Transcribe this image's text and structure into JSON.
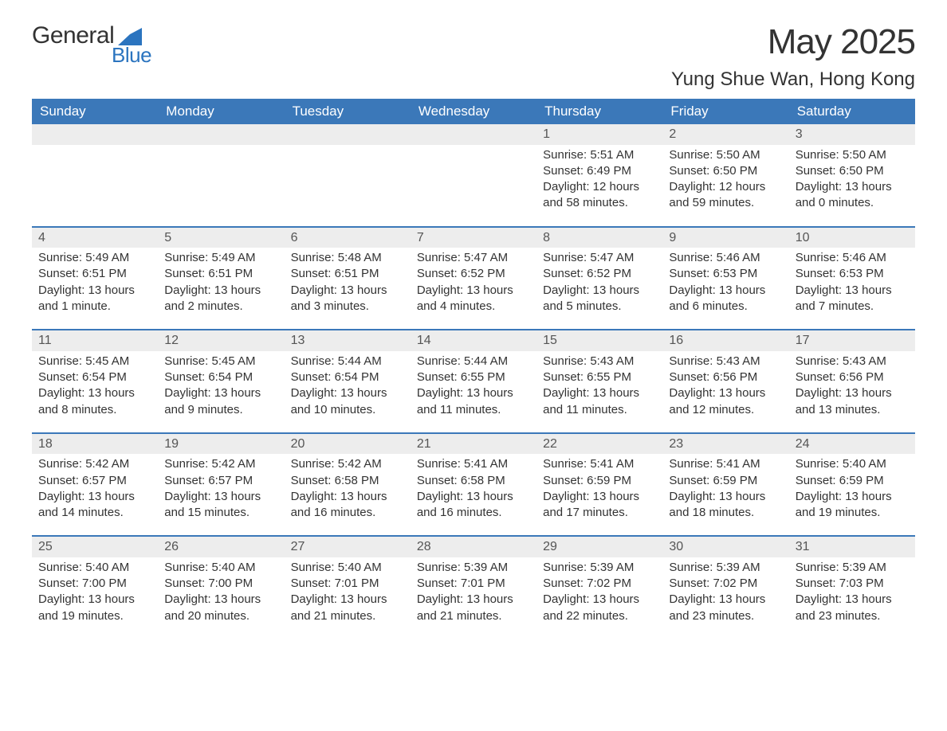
{
  "logo": {
    "main": "General",
    "sub": "Blue",
    "shape_color": "#2b74bf"
  },
  "title": "May 2025",
  "location": "Yung Shue Wan, Hong Kong",
  "colors": {
    "header_bg": "#3b78b9",
    "header_text": "#ffffff",
    "daynum_bg": "#ededed",
    "row_divider": "#3b78b9",
    "body_text": "#333333"
  },
  "typography": {
    "title_fontsize_pt": 33,
    "location_fontsize_pt": 18,
    "header_fontsize_pt": 13,
    "cell_fontsize_pt": 11
  },
  "layout": {
    "columns": 7,
    "rows": 5,
    "col_width_pct": 14.28
  },
  "weekdays": [
    "Sunday",
    "Monday",
    "Tuesday",
    "Wednesday",
    "Thursday",
    "Friday",
    "Saturday"
  ],
  "weeks": [
    [
      null,
      null,
      null,
      null,
      {
        "n": "1",
        "sr": "Sunrise: 5:51 AM",
        "ss": "Sunset: 6:49 PM",
        "dl": "Daylight: 12 hours and 58 minutes."
      },
      {
        "n": "2",
        "sr": "Sunrise: 5:50 AM",
        "ss": "Sunset: 6:50 PM",
        "dl": "Daylight: 12 hours and 59 minutes."
      },
      {
        "n": "3",
        "sr": "Sunrise: 5:50 AM",
        "ss": "Sunset: 6:50 PM",
        "dl": "Daylight: 13 hours and 0 minutes."
      }
    ],
    [
      {
        "n": "4",
        "sr": "Sunrise: 5:49 AM",
        "ss": "Sunset: 6:51 PM",
        "dl": "Daylight: 13 hours and 1 minute."
      },
      {
        "n": "5",
        "sr": "Sunrise: 5:49 AM",
        "ss": "Sunset: 6:51 PM",
        "dl": "Daylight: 13 hours and 2 minutes."
      },
      {
        "n": "6",
        "sr": "Sunrise: 5:48 AM",
        "ss": "Sunset: 6:51 PM",
        "dl": "Daylight: 13 hours and 3 minutes."
      },
      {
        "n": "7",
        "sr": "Sunrise: 5:47 AM",
        "ss": "Sunset: 6:52 PM",
        "dl": "Daylight: 13 hours and 4 minutes."
      },
      {
        "n": "8",
        "sr": "Sunrise: 5:47 AM",
        "ss": "Sunset: 6:52 PM",
        "dl": "Daylight: 13 hours and 5 minutes."
      },
      {
        "n": "9",
        "sr": "Sunrise: 5:46 AM",
        "ss": "Sunset: 6:53 PM",
        "dl": "Daylight: 13 hours and 6 minutes."
      },
      {
        "n": "10",
        "sr": "Sunrise: 5:46 AM",
        "ss": "Sunset: 6:53 PM",
        "dl": "Daylight: 13 hours and 7 minutes."
      }
    ],
    [
      {
        "n": "11",
        "sr": "Sunrise: 5:45 AM",
        "ss": "Sunset: 6:54 PM",
        "dl": "Daylight: 13 hours and 8 minutes."
      },
      {
        "n": "12",
        "sr": "Sunrise: 5:45 AM",
        "ss": "Sunset: 6:54 PM",
        "dl": "Daylight: 13 hours and 9 minutes."
      },
      {
        "n": "13",
        "sr": "Sunrise: 5:44 AM",
        "ss": "Sunset: 6:54 PM",
        "dl": "Daylight: 13 hours and 10 minutes."
      },
      {
        "n": "14",
        "sr": "Sunrise: 5:44 AM",
        "ss": "Sunset: 6:55 PM",
        "dl": "Daylight: 13 hours and 11 minutes."
      },
      {
        "n": "15",
        "sr": "Sunrise: 5:43 AM",
        "ss": "Sunset: 6:55 PM",
        "dl": "Daylight: 13 hours and 11 minutes."
      },
      {
        "n": "16",
        "sr": "Sunrise: 5:43 AM",
        "ss": "Sunset: 6:56 PM",
        "dl": "Daylight: 13 hours and 12 minutes."
      },
      {
        "n": "17",
        "sr": "Sunrise: 5:43 AM",
        "ss": "Sunset: 6:56 PM",
        "dl": "Daylight: 13 hours and 13 minutes."
      }
    ],
    [
      {
        "n": "18",
        "sr": "Sunrise: 5:42 AM",
        "ss": "Sunset: 6:57 PM",
        "dl": "Daylight: 13 hours and 14 minutes."
      },
      {
        "n": "19",
        "sr": "Sunrise: 5:42 AM",
        "ss": "Sunset: 6:57 PM",
        "dl": "Daylight: 13 hours and 15 minutes."
      },
      {
        "n": "20",
        "sr": "Sunrise: 5:42 AM",
        "ss": "Sunset: 6:58 PM",
        "dl": "Daylight: 13 hours and 16 minutes."
      },
      {
        "n": "21",
        "sr": "Sunrise: 5:41 AM",
        "ss": "Sunset: 6:58 PM",
        "dl": "Daylight: 13 hours and 16 minutes."
      },
      {
        "n": "22",
        "sr": "Sunrise: 5:41 AM",
        "ss": "Sunset: 6:59 PM",
        "dl": "Daylight: 13 hours and 17 minutes."
      },
      {
        "n": "23",
        "sr": "Sunrise: 5:41 AM",
        "ss": "Sunset: 6:59 PM",
        "dl": "Daylight: 13 hours and 18 minutes."
      },
      {
        "n": "24",
        "sr": "Sunrise: 5:40 AM",
        "ss": "Sunset: 6:59 PM",
        "dl": "Daylight: 13 hours and 19 minutes."
      }
    ],
    [
      {
        "n": "25",
        "sr": "Sunrise: 5:40 AM",
        "ss": "Sunset: 7:00 PM",
        "dl": "Daylight: 13 hours and 19 minutes."
      },
      {
        "n": "26",
        "sr": "Sunrise: 5:40 AM",
        "ss": "Sunset: 7:00 PM",
        "dl": "Daylight: 13 hours and 20 minutes."
      },
      {
        "n": "27",
        "sr": "Sunrise: 5:40 AM",
        "ss": "Sunset: 7:01 PM",
        "dl": "Daylight: 13 hours and 21 minutes."
      },
      {
        "n": "28",
        "sr": "Sunrise: 5:39 AM",
        "ss": "Sunset: 7:01 PM",
        "dl": "Daylight: 13 hours and 21 minutes."
      },
      {
        "n": "29",
        "sr": "Sunrise: 5:39 AM",
        "ss": "Sunset: 7:02 PM",
        "dl": "Daylight: 13 hours and 22 minutes."
      },
      {
        "n": "30",
        "sr": "Sunrise: 5:39 AM",
        "ss": "Sunset: 7:02 PM",
        "dl": "Daylight: 13 hours and 23 minutes."
      },
      {
        "n": "31",
        "sr": "Sunrise: 5:39 AM",
        "ss": "Sunset: 7:03 PM",
        "dl": "Daylight: 13 hours and 23 minutes."
      }
    ]
  ]
}
